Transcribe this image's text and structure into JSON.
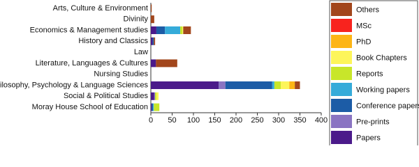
{
  "chart_data": {
    "type": "stacked-barh",
    "categories": [
      "Arts, Culture & Environment",
      "Divinity",
      "Economics & Management studies",
      "History and Classics",
      "Law",
      "Literature, Languages & Cultures",
      "Nursing Studies",
      "Philosophy, Psychology & Language Sciences",
      "Social & Political Studies",
      "Moray House School of Education"
    ],
    "series": [
      {
        "name": "Papers",
        "color": "#4b1a8a",
        "values": [
          0,
          0,
          13,
          4,
          0,
          12,
          0,
          159,
          8,
          2
        ]
      },
      {
        "name": "Pre-prints",
        "color": "#8a74c2",
        "values": [
          0,
          0,
          0,
          0,
          0,
          0,
          0,
          16,
          2,
          0
        ]
      },
      {
        "name": "Conference papers",
        "color": "#1c5ca6",
        "values": [
          0,
          0,
          20,
          3,
          0,
          0,
          0,
          110,
          0,
          3
        ]
      },
      {
        "name": "Working papers",
        "color": "#35abd9",
        "values": [
          0,
          0,
          36,
          0,
          0,
          0,
          0,
          5,
          0,
          2
        ]
      },
      {
        "name": "Reports",
        "color": "#c8e62a",
        "values": [
          0,
          0,
          5,
          0,
          0,
          0,
          0,
          15,
          3,
          13
        ]
      },
      {
        "name": "Book Chapters",
        "color": "#fdf55a",
        "values": [
          0,
          0,
          2,
          0,
          0,
          0,
          0,
          20,
          5,
          0
        ]
      },
      {
        "name": "PhD",
        "color": "#fdb515",
        "values": [
          0,
          0,
          0,
          0,
          0,
          0,
          0,
          13,
          0,
          0
        ]
      },
      {
        "name": "MSc",
        "color": "#f8231e",
        "values": [
          0,
          0,
          0,
          0,
          0,
          0,
          0,
          0,
          0,
          0
        ]
      },
      {
        "name": "Others",
        "color": "#a2461c",
        "values": [
          2,
          8,
          18,
          3,
          0,
          50,
          0,
          12,
          0,
          0
        ]
      }
    ],
    "xlim": [
      0,
      400
    ],
    "xticks": [
      0,
      50,
      100,
      150,
      200,
      250,
      300,
      350,
      400
    ],
    "legend": "right"
  }
}
